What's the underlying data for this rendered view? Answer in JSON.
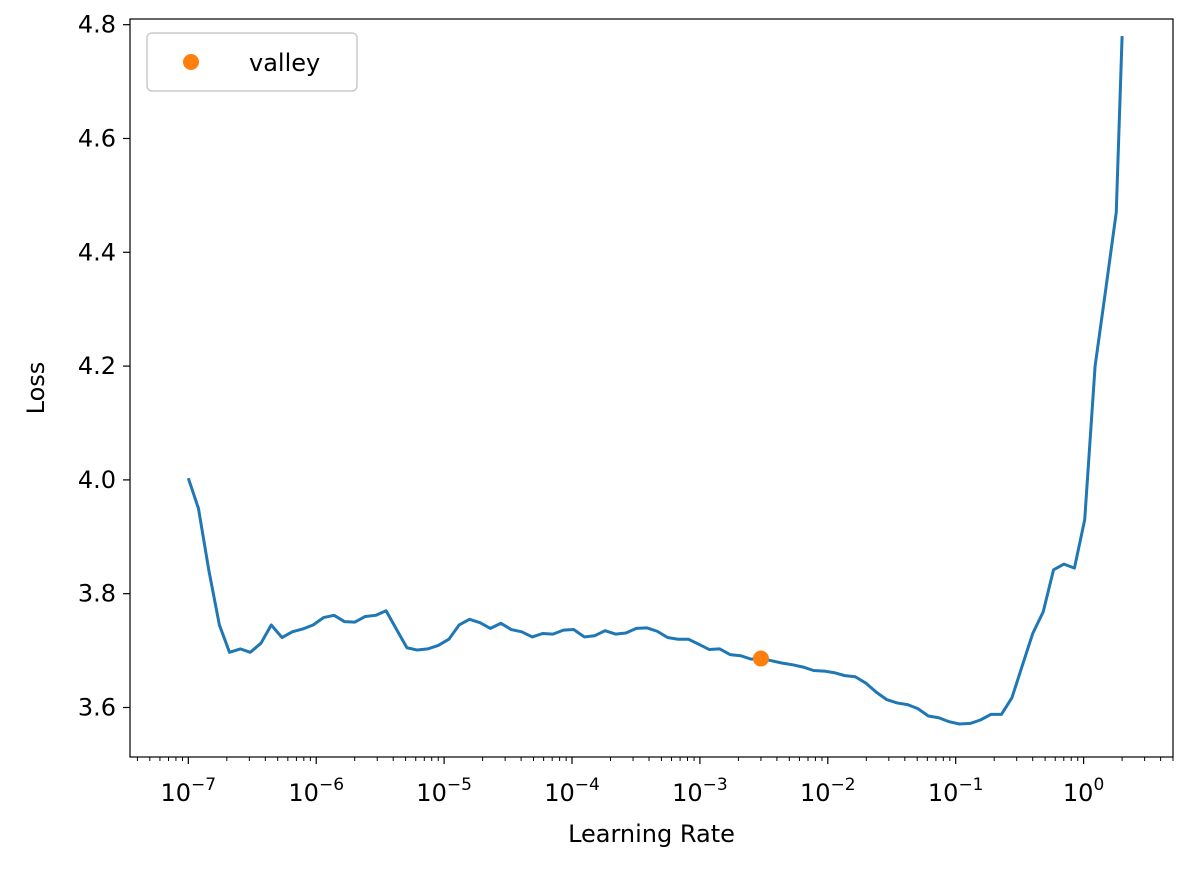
{
  "chart_data": {
    "type": "line",
    "xlabel": "Learning Rate",
    "ylabel": "Loss",
    "xscale": "log",
    "xlim": [
      3.5e-08,
      5.0
    ],
    "ylim": [
      3.513,
      4.81
    ],
    "grid": false,
    "legend": {
      "placement": "top-left",
      "entries": [
        "valley"
      ]
    },
    "x_ticks": [
      {
        "value": 1e-07,
        "base": "10",
        "exp": "−7"
      },
      {
        "value": 1e-06,
        "base": "10",
        "exp": "−6"
      },
      {
        "value": 1e-05,
        "base": "10",
        "exp": "−5"
      },
      {
        "value": 0.0001,
        "base": "10",
        "exp": "−4"
      },
      {
        "value": 0.001,
        "base": "10",
        "exp": "−3"
      },
      {
        "value": 0.01,
        "base": "10",
        "exp": "−2"
      },
      {
        "value": 0.1,
        "base": "10",
        "exp": "−1"
      },
      {
        "value": 1,
        "base": "10",
        "exp": "0"
      }
    ],
    "y_ticks": [
      {
        "value": 3.6,
        "label": "3.6"
      },
      {
        "value": 3.8,
        "label": "3.8"
      },
      {
        "value": 4.0,
        "label": "4.0"
      },
      {
        "value": 4.2,
        "label": "4.2"
      },
      {
        "value": 4.4,
        "label": "4.4"
      },
      {
        "value": 4.6,
        "label": "4.6"
      },
      {
        "value": 4.8,
        "label": "4.8"
      }
    ],
    "series": [
      {
        "kind": "line",
        "color": "#1f77b4",
        "x": [
          1e-07,
          1.2e-07,
          1.45e-07,
          1.75e-07,
          2.1e-07,
          2.55e-07,
          3.05e-07,
          3.7e-07,
          4.45e-07,
          5.4e-07,
          6.5e-07,
          7.85e-07,
          9.45e-07,
          1.14e-06,
          1.38e-06,
          1.66e-06,
          2e-06,
          2.42e-06,
          2.92e-06,
          3.52e-06,
          4.25e-06,
          5.12e-06,
          6.18e-06,
          7.45e-06,
          9e-06,
          1.09e-05,
          1.31e-05,
          1.58e-05,
          1.91e-05,
          2.3e-05,
          2.78e-05,
          3.35e-05,
          4.05e-05,
          4.88e-05,
          5.89e-05,
          7.1e-05,
          8.57e-05,
          0.000103,
          0.000125,
          0.00015,
          0.000181,
          0.000219,
          0.000264,
          0.000318,
          0.000384,
          0.000463,
          0.000559,
          0.000674,
          0.000814,
          0.000982,
          0.00118,
          0.00143,
          0.00172,
          0.00208,
          0.00251,
          0.00303,
          0.00365,
          0.00441,
          0.00532,
          0.00642,
          0.00774,
          0.00934,
          0.0113,
          0.0136,
          0.0164,
          0.0198,
          0.0239,
          0.0288,
          0.0348,
          0.042,
          0.0506,
          0.0611,
          0.0737,
          0.0889,
          0.107,
          0.13,
          0.156,
          0.189,
          0.228,
          0.275,
          0.331,
          0.4,
          0.483,
          0.582,
          0.703,
          0.848,
          1.02,
          1.23,
          1.49,
          1.8,
          2.0
        ],
        "y": [
          4.003,
          3.95,
          3.84,
          3.745,
          3.697,
          3.703,
          3.697,
          3.713,
          3.745,
          3.723,
          3.733,
          3.738,
          3.745,
          3.758,
          3.762,
          3.751,
          3.75,
          3.76,
          3.762,
          3.77,
          3.737,
          3.705,
          3.701,
          3.703,
          3.709,
          3.72,
          3.745,
          3.755,
          3.749,
          3.739,
          3.748,
          3.737,
          3.733,
          3.724,
          3.73,
          3.729,
          3.736,
          3.737,
          3.724,
          3.726,
          3.735,
          3.729,
          3.731,
          3.739,
          3.74,
          3.734,
          3.723,
          3.72,
          3.72,
          3.711,
          3.702,
          3.703,
          3.693,
          3.691,
          3.685,
          3.686,
          3.682,
          3.678,
          3.675,
          3.671,
          3.665,
          3.664,
          3.661,
          3.656,
          3.654,
          3.643,
          3.627,
          3.614,
          3.608,
          3.605,
          3.598,
          3.585,
          3.582,
          3.575,
          3.571,
          3.572,
          3.578,
          3.588,
          3.588,
          3.617,
          3.673,
          3.73,
          3.768,
          3.842,
          3.852,
          3.845,
          3.93,
          4.2,
          4.335,
          4.47,
          4.78
        ]
      },
      {
        "kind": "marker",
        "name": "valley",
        "color": "#ff7f0e",
        "x": [
          0.003
        ],
        "y": [
          3.686
        ]
      }
    ]
  }
}
